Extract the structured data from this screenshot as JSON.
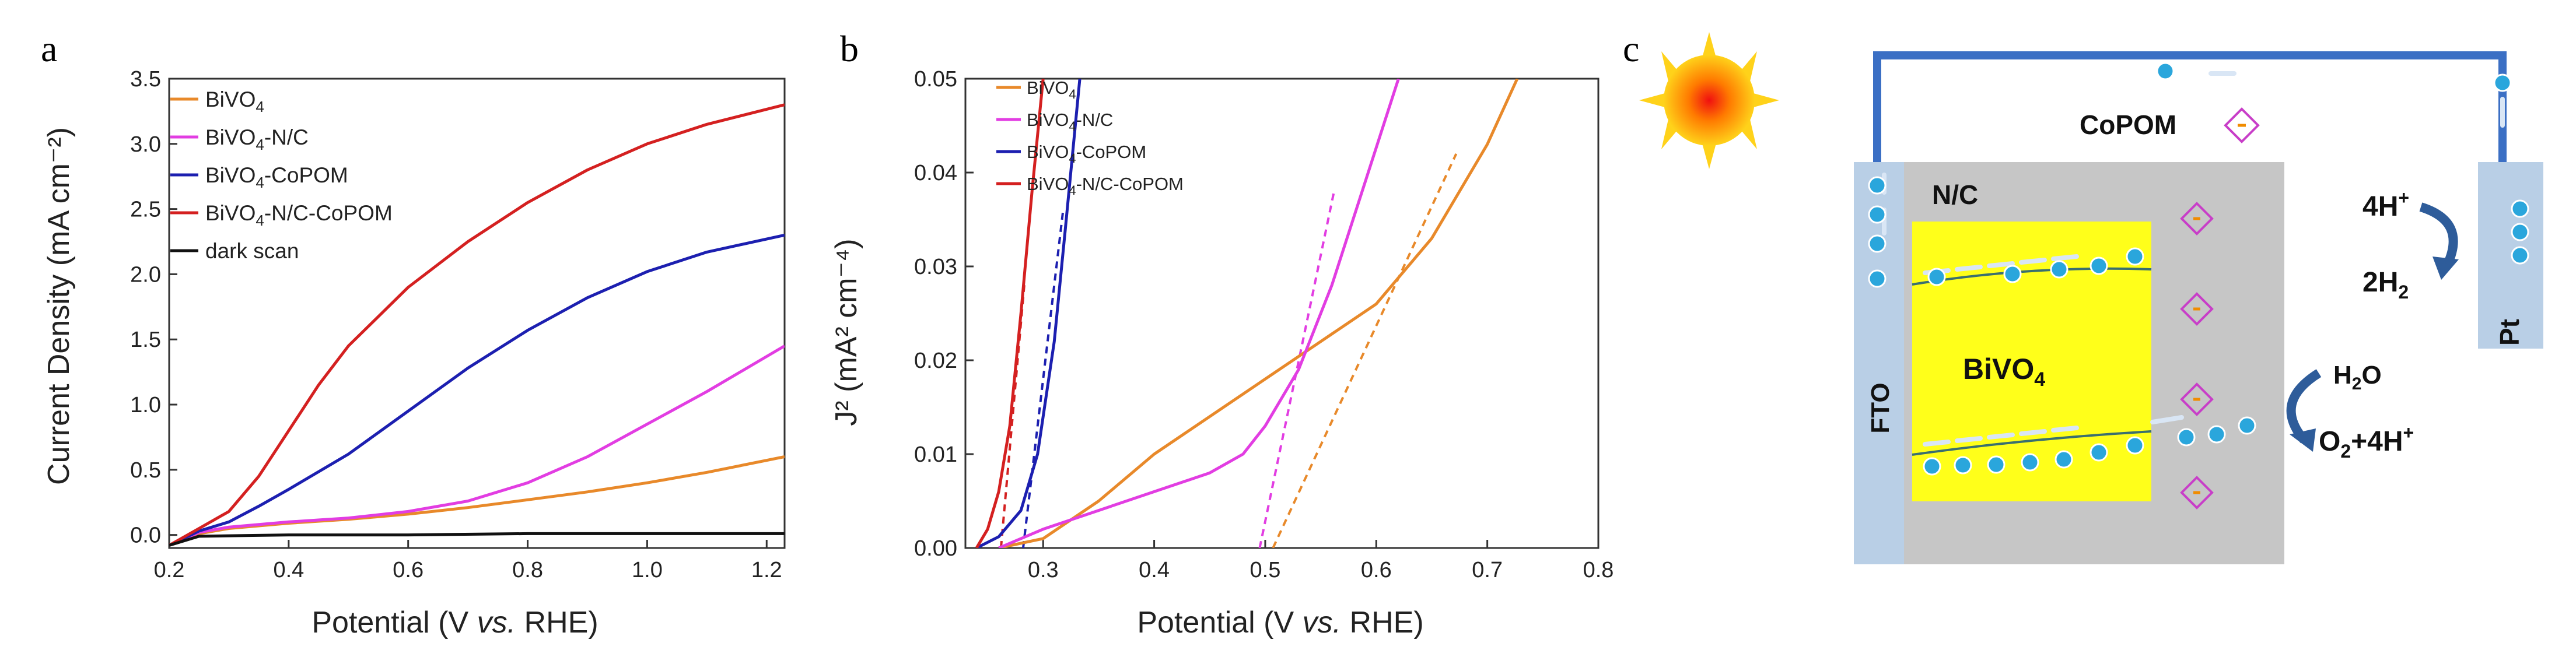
{
  "panels": {
    "a": "a",
    "b": "b",
    "c": "c"
  },
  "colors": {
    "bivo4": "#e8892a",
    "bivo4_nc": "#e23de2",
    "bivo4_copom": "#1c1fb0",
    "bivo4_nc_copom": "#d42020",
    "dark": "#111111",
    "circuit": "#3b6fc4",
    "electron": "#2aa6dc",
    "bivo4_block": "#ffff1a",
    "nc_block": "#c6c6c6",
    "fto_block": "#b9cfe6",
    "pt_block": "#b9cfe6",
    "copom": "#c83ec8",
    "arrow": "#2e5c9a"
  },
  "chart_data": [
    {
      "type": "line",
      "title": "",
      "xlabel": "Potential (V vs. RHE)",
      "xlabel_parts": [
        "Potential (V ",
        "vs.",
        " RHE)"
      ],
      "ylabel": "Current Density (mA cm⁻²)",
      "xlim": [
        0.2,
        1.23
      ],
      "ylim": [
        -0.1,
        3.5
      ],
      "xticks": [
        0.2,
        0.4,
        0.6,
        0.8,
        1.0,
        1.2
      ],
      "xtick_labels": [
        "0.2",
        "0.4",
        "0.6",
        "0.8",
        "1.0",
        "1.2"
      ],
      "yticks": [
        0.0,
        0.5,
        1.0,
        1.5,
        2.0,
        2.5,
        3.0,
        3.5
      ],
      "ytick_labels": [
        "0.0",
        "0.5",
        "1.0",
        "1.5",
        "2.0",
        "2.5",
        "3.0",
        "3.5"
      ],
      "legend_position": "top-left",
      "series": [
        {
          "key": "bivo4",
          "name": "BiVO4",
          "legend": [
            "BiVO",
            "4",
            ""
          ],
          "x": [
            0.2,
            0.25,
            0.3,
            0.4,
            0.5,
            0.6,
            0.7,
            0.8,
            0.9,
            1.0,
            1.1,
            1.23
          ],
          "y": [
            -0.08,
            0.01,
            0.05,
            0.09,
            0.12,
            0.16,
            0.21,
            0.27,
            0.33,
            0.4,
            0.48,
            0.6
          ]
        },
        {
          "key": "bivo4_nc",
          "name": "BiVO4-N/C",
          "legend": [
            "BiVO",
            "4",
            "-N/C"
          ],
          "x": [
            0.2,
            0.25,
            0.3,
            0.4,
            0.5,
            0.6,
            0.7,
            0.8,
            0.9,
            1.0,
            1.1,
            1.23
          ],
          "y": [
            -0.08,
            0.02,
            0.06,
            0.1,
            0.13,
            0.18,
            0.26,
            0.4,
            0.6,
            0.85,
            1.1,
            1.45
          ]
        },
        {
          "key": "bivo4_copom",
          "name": "BiVO4-CoPOM",
          "legend": [
            "BiVO",
            "4",
            "-CoPOM"
          ],
          "x": [
            0.2,
            0.25,
            0.3,
            0.35,
            0.4,
            0.5,
            0.6,
            0.7,
            0.8,
            0.9,
            1.0,
            1.1,
            1.23
          ],
          "y": [
            -0.08,
            0.03,
            0.1,
            0.22,
            0.35,
            0.62,
            0.95,
            1.28,
            1.57,
            1.82,
            2.02,
            2.17,
            2.3
          ]
        },
        {
          "key": "bivo4_nc_copom",
          "name": "BiVO4-N/C-CoPOM",
          "legend": [
            "BiVO",
            "4",
            "-N/C-CoPOM"
          ],
          "x": [
            0.2,
            0.25,
            0.3,
            0.35,
            0.4,
            0.45,
            0.5,
            0.6,
            0.7,
            0.8,
            0.9,
            1.0,
            1.1,
            1.23
          ],
          "y": [
            -0.08,
            0.05,
            0.18,
            0.45,
            0.8,
            1.15,
            1.45,
            1.9,
            2.25,
            2.55,
            2.8,
            3.0,
            3.15,
            3.3
          ]
        },
        {
          "key": "dark",
          "name": "dark scan",
          "legend": [
            "dark scan",
            "",
            ""
          ],
          "x": [
            0.2,
            0.25,
            0.4,
            0.6,
            0.8,
            1.0,
            1.23
          ],
          "y": [
            -0.08,
            -0.01,
            0.0,
            0.0,
            0.01,
            0.01,
            0.01
          ]
        }
      ]
    },
    {
      "type": "line",
      "title": "",
      "xlabel": "Potential (V vs. RHE)",
      "xlabel_parts": [
        "Potential (V ",
        "vs.",
        " RHE)"
      ],
      "ylabel": "J² (mA² cm⁻⁴)",
      "xlim": [
        0.23,
        0.8
      ],
      "ylim": [
        0.0,
        0.05
      ],
      "xticks": [
        0.3,
        0.4,
        0.5,
        0.6,
        0.7,
        0.8
      ],
      "xtick_labels": [
        "0.3",
        "0.4",
        "0.5",
        "0.6",
        "0.7",
        "0.8"
      ],
      "yticks": [
        0.0,
        0.01,
        0.02,
        0.03,
        0.04,
        0.05
      ],
      "ytick_labels": [
        "0.00",
        "0.01",
        "0.02",
        "0.03",
        "0.04",
        "0.05"
      ],
      "legend_position": "top-left",
      "series": [
        {
          "key": "bivo4",
          "name": "BiVO4",
          "legend": [
            "BiVO",
            "4",
            ""
          ],
          "x": [
            0.26,
            0.3,
            0.35,
            0.4,
            0.45,
            0.5,
            0.55,
            0.6,
            0.65,
            0.7,
            0.727
          ],
          "y": [
            0.0,
            0.001,
            0.005,
            0.01,
            0.014,
            0.018,
            0.022,
            0.026,
            0.033,
            0.043,
            0.05
          ]
        },
        {
          "key": "bivo4_nc",
          "name": "BiVO4-N/C",
          "legend": [
            "BiVO",
            "4",
            "-N/C"
          ],
          "x": [
            0.26,
            0.3,
            0.35,
            0.4,
            0.45,
            0.48,
            0.5,
            0.53,
            0.56,
            0.59,
            0.62
          ],
          "y": [
            0.0,
            0.002,
            0.004,
            0.006,
            0.008,
            0.01,
            0.013,
            0.019,
            0.028,
            0.039,
            0.05
          ]
        },
        {
          "key": "bivo4_copom",
          "name": "BiVO4-CoPOM",
          "legend": [
            "BiVO",
            "4",
            "-CoPOM"
          ],
          "x": [
            0.24,
            0.26,
            0.28,
            0.295,
            0.31,
            0.32,
            0.333
          ],
          "y": [
            0.0,
            0.0012,
            0.004,
            0.01,
            0.022,
            0.034,
            0.05
          ]
        },
        {
          "key": "bivo4_nc_copom",
          "name": "BiVO4-N/C-CoPOM",
          "legend": [
            "BiVO",
            "4",
            "-N/C-CoPOM"
          ],
          "x": [
            0.24,
            0.25,
            0.26,
            0.27,
            0.28,
            0.29,
            0.3
          ],
          "y": [
            0.0,
            0.002,
            0.006,
            0.013,
            0.025,
            0.038,
            0.05
          ]
        }
      ],
      "fits": [
        {
          "key": "bivo4",
          "x": [
            0.507,
            0.672
          ],
          "y": [
            0.0,
            0.042
          ]
        },
        {
          "key": "bivo4_nc",
          "x": [
            0.495,
            0.562
          ],
          "y": [
            0.0,
            0.038
          ]
        },
        {
          "key": "bivo4_copom",
          "x": [
            0.282,
            0.318
          ],
          "y": [
            0.0,
            0.036
          ]
        },
        {
          "key": "bivo4_nc_copom",
          "x": [
            0.262,
            0.283
          ],
          "y": [
            0.0,
            0.028
          ]
        }
      ]
    }
  ],
  "diagram": {
    "copom": "CoPOM",
    "nc": "N/C",
    "fto": "FTO",
    "pt": "Pt",
    "bivo4": [
      "BiVO",
      "4"
    ],
    "h_plus": [
      "4H",
      "+"
    ],
    "h2": [
      "2H",
      "2"
    ],
    "h2o": [
      "H",
      "2",
      "O"
    ],
    "o2": [
      "O",
      "2",
      "+4H",
      "+"
    ]
  }
}
